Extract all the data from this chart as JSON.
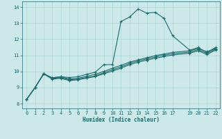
{
  "xlabel": "Humidex (Indice chaleur)",
  "bg_color": "#cce8e8",
  "line_color": "#1a6b6b",
  "grid_color": "#aad4d4",
  "ylim": [
    7.7,
    14.35
  ],
  "xlim": [
    -0.5,
    22.5
  ],
  "yticks": [
    8,
    9,
    10,
    11,
    12,
    13,
    14
  ],
  "xticks": [
    0,
    1,
    2,
    3,
    4,
    5,
    6,
    7,
    8,
    9,
    10,
    11,
    12,
    13,
    14,
    15,
    16,
    17,
    19,
    20,
    21,
    22
  ],
  "line1_x": [
    0,
    1,
    2,
    3,
    4,
    5,
    6,
    7,
    8,
    9,
    10,
    11,
    12,
    13,
    14,
    15,
    16,
    17,
    19,
    20,
    21,
    22
  ],
  "line1_y": [
    8.25,
    9.0,
    9.85,
    9.6,
    9.67,
    9.62,
    9.67,
    9.82,
    9.95,
    10.42,
    10.42,
    13.1,
    13.38,
    13.88,
    13.62,
    13.67,
    13.3,
    12.22,
    11.32,
    11.48,
    11.18,
    11.48
  ],
  "line2_x": [
    0,
    1,
    2,
    3,
    4,
    5,
    6,
    7,
    8,
    9,
    10,
    11,
    12,
    13,
    14,
    15,
    16,
    17,
    19,
    20,
    21,
    22
  ],
  "line2_y": [
    8.25,
    9.0,
    9.85,
    9.6,
    9.67,
    9.52,
    9.57,
    9.7,
    9.82,
    10.0,
    10.2,
    10.38,
    10.58,
    10.72,
    10.85,
    10.98,
    11.08,
    11.18,
    11.28,
    11.42,
    11.22,
    11.42
  ],
  "line3_x": [
    0,
    1,
    2,
    3,
    4,
    5,
    6,
    7,
    8,
    9,
    10,
    11,
    12,
    13,
    14,
    15,
    16,
    17,
    19,
    20,
    21,
    22
  ],
  "line3_y": [
    8.25,
    9.0,
    9.85,
    9.56,
    9.62,
    9.48,
    9.53,
    9.62,
    9.72,
    9.92,
    10.1,
    10.28,
    10.5,
    10.65,
    10.78,
    10.9,
    11.0,
    11.1,
    11.2,
    11.35,
    11.12,
    11.38
  ],
  "line4_x": [
    0,
    1,
    2,
    3,
    4,
    5,
    6,
    7,
    8,
    9,
    10,
    11,
    12,
    13,
    14,
    15,
    16,
    17,
    19,
    20,
    21,
    22
  ],
  "line4_y": [
    8.25,
    9.0,
    9.85,
    9.52,
    9.57,
    9.43,
    9.48,
    9.58,
    9.68,
    9.85,
    10.02,
    10.2,
    10.42,
    10.57,
    10.7,
    10.82,
    10.92,
    11.02,
    11.13,
    11.28,
    11.05,
    11.32
  ]
}
